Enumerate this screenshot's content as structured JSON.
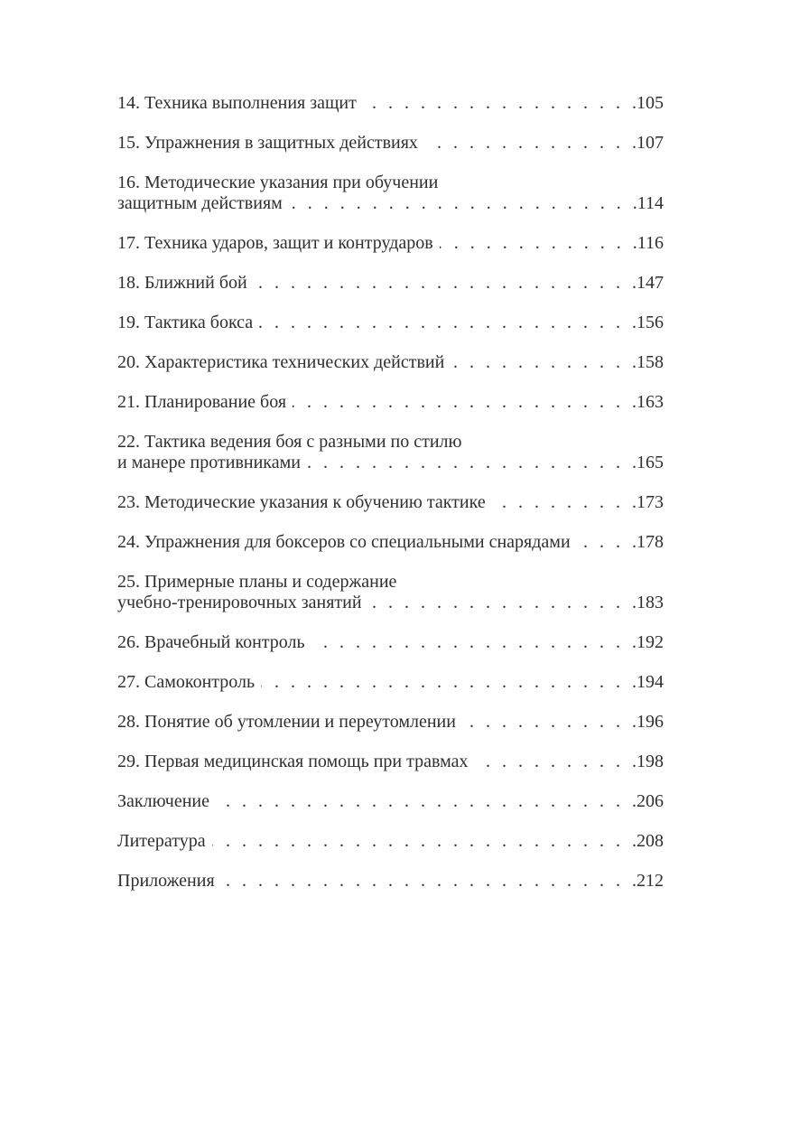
{
  "page": {
    "background_color": "#ffffff",
    "text_color": "#2f2f2f"
  },
  "toc": {
    "entries": [
      {
        "line1": "14. Техника выполнения защит",
        "page": "105"
      },
      {
        "line1": "15. Упражнения в защитных действиях",
        "page": "107"
      },
      {
        "line1": "16. Методические указания при обучении",
        "line2": "защитным действиям",
        "page": "114"
      },
      {
        "line1": "17. Техника ударов, защит и контрударов",
        "page": "116"
      },
      {
        "line1": "18. Ближний бой",
        "page": "147"
      },
      {
        "line1": "19. Тактика бокса",
        "page": "156"
      },
      {
        "line1": "20. Характеристика технических действий",
        "page": "158"
      },
      {
        "line1": "21. Планирование боя",
        "page": "163"
      },
      {
        "line1": "22. Тактика ведения боя с разными по стилю",
        "line2": "и манере противниками",
        "page": "165"
      },
      {
        "line1": "23. Методические указания к обучению тактике",
        "page": "173"
      },
      {
        "line1": "24. Упражнения для боксеров со специальными снарядами",
        "page": "178"
      },
      {
        "line1": "25. Примерные планы и содержание",
        "line2": "учебно-тренировочных занятий",
        "page": "183"
      },
      {
        "line1": "26. Врачебный контроль",
        "page": "192"
      },
      {
        "line1": "27. Самоконтроль",
        "page": "194"
      },
      {
        "line1": "28. Понятие об утомлении и переутомлении",
        "page": "196"
      },
      {
        "line1": "29. Первая медицинская помощь при травмах",
        "page": "198"
      },
      {
        "line1": "Заключение",
        "page": "206"
      },
      {
        "line1": "Литература",
        "page": "208"
      },
      {
        "line1": "Приложения",
        "page": "212"
      }
    ]
  }
}
